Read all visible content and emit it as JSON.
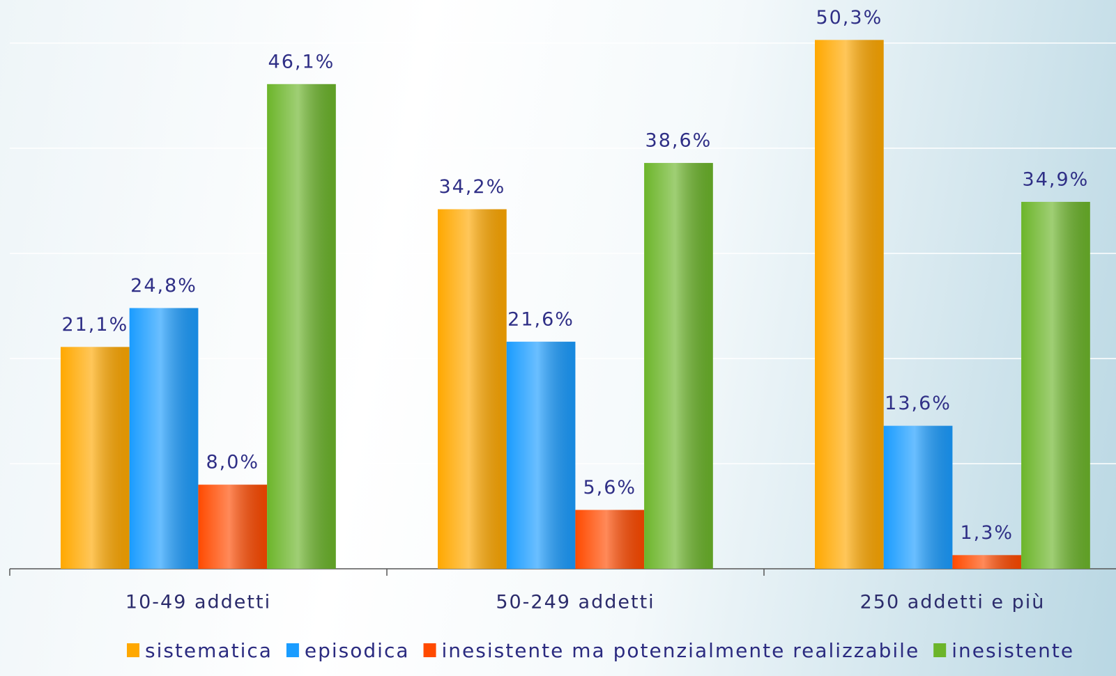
{
  "chart_data": {
    "type": "bar",
    "categories": [
      "10-49 addetti",
      "50-249 addetti",
      "250 addetti e più"
    ],
    "series": [
      {
        "name": "sistematica",
        "color": "#ffa800",
        "values": [
          21.1,
          34.2,
          50.3
        ],
        "value_labels": [
          "21,1%",
          "34,2%",
          "50,3%"
        ]
      },
      {
        "name": "episodica",
        "color": "#1a9cff",
        "values": [
          24.8,
          21.6,
          13.6
        ],
        "value_labels": [
          "24,8%",
          "21,6%",
          "13,6%"
        ]
      },
      {
        "name": "inesistente ma potenzialmente realizzabile",
        "color": "#ff4a00",
        "values": [
          8.0,
          5.6,
          1.3
        ],
        "value_labels": [
          "8,0%",
          "5,6%",
          "1,3%"
        ]
      },
      {
        "name": "inesistente",
        "color": "#6cb52a",
        "values": [
          46.1,
          38.6,
          34.9
        ],
        "value_labels": [
          "46,1%",
          "38,6%",
          "34,9%"
        ]
      }
    ],
    "ylim": [
      0,
      54.1
    ],
    "yticks": [
      0,
      10,
      20,
      30,
      40,
      50
    ],
    "grid": true,
    "legend": "bottom"
  }
}
